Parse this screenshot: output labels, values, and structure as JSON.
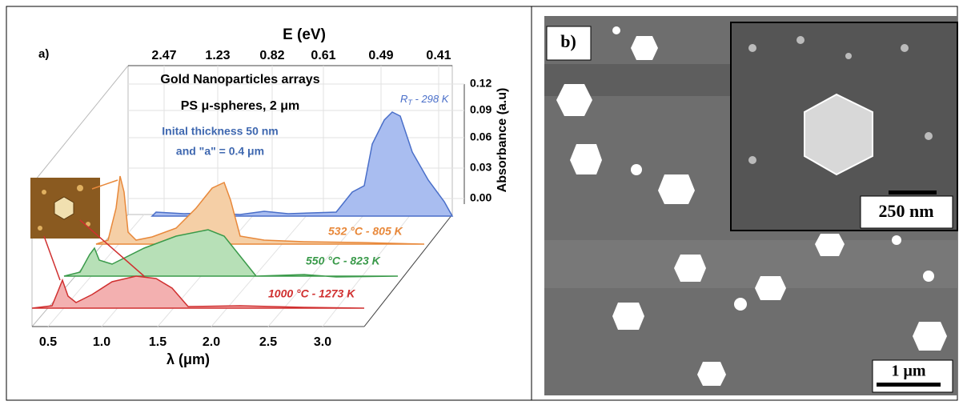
{
  "panel_a": {
    "label": "a)",
    "top_axis_title": "E (eV)",
    "top_ticks": [
      "2.47",
      "1.23",
      "0.82",
      "0.61",
      "0.49",
      "0.41"
    ],
    "bottom_ticks": [
      "0.5",
      "1.0",
      "1.5",
      "2.0",
      "2.5",
      "3.0"
    ],
    "x_axis_title": "λ (μm)",
    "y_axis_title": "Absorbance (a.u)",
    "y_ticks": [
      "0.12",
      "0.09",
      "0.06",
      "0.03",
      "0.00"
    ],
    "titles": [
      "Gold Nanoparticles arrays",
      "PS μ-spheres, 2 μm"
    ],
    "notes": [
      "Inital thickness 50 nm",
      "and \"a\" = 0.4 μm"
    ],
    "curve_labels": {
      "room": {
        "main": "R",
        "sub": "T",
        "rest": " - 298 K"
      },
      "t532": "532 °C - 805 K",
      "t550": "550 °C - 823 K",
      "t1000": "1000 °C - 1273 K"
    }
  },
  "panel_b": {
    "label": "b)",
    "inset_scale": "250 nm",
    "scale": "1 μm"
  }
}
